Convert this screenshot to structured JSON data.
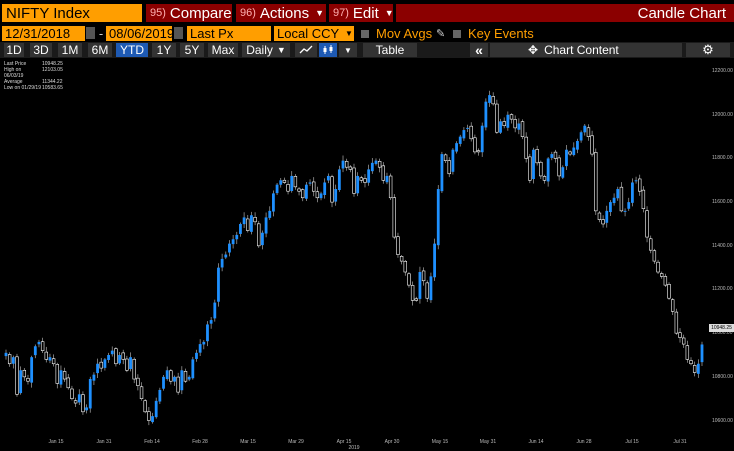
{
  "header": {
    "ticker": "NIFTY Index",
    "menus": [
      {
        "num": "95)",
        "label": "Compare",
        "has_arrow": false
      },
      {
        "num": "96)",
        "label": "Actions",
        "has_arrow": true
      },
      {
        "num": "97)",
        "label": "Edit",
        "has_arrow": true
      }
    ],
    "chart_title": "Candle Chart"
  },
  "controls": {
    "start_date": "12/31/2018",
    "dash": "-",
    "end_date": "08/06/2019",
    "price_field": "Last Px",
    "currency": "Local CCY",
    "mov_avgs": "Mov Avgs",
    "key_events": "Key Events"
  },
  "toolbar": {
    "ranges": [
      "1D",
      "3D",
      "1M",
      "6M",
      "YTD",
      "1Y",
      "5Y",
      "Max"
    ],
    "selected_range": "YTD",
    "frequency": "Daily",
    "table_label": "Table",
    "chart_content_label": "Chart Content"
  },
  "legend": [
    {
      "label": "Last Price",
      "value": "10948.25"
    },
    {
      "label": "High on 06/03/19",
      "value": "12103.05"
    },
    {
      "label": "Average",
      "value": "11344.22"
    },
    {
      "label": "Low on 01/29/19",
      "value": "10583.65"
    }
  ],
  "last_price_label": "10948.25",
  "colors": {
    "accent": "#ff9e00",
    "menu_bg": "#8b0000",
    "up_candle": "#1e90ff",
    "down_candle": "#ffffff",
    "selected_btn": "#1e5ab4"
  },
  "chart_data": {
    "type": "candlestick",
    "ylim": [
      10520,
      12260
    ],
    "y_ticks": [
      10600,
      10800,
      11000,
      11200,
      11400,
      11600,
      11800,
      12000,
      12200
    ],
    "x_tick_labels": [
      "Jan 15",
      "Jan 31",
      "Feb 14",
      "Feb 28",
      "Mar 15",
      "Mar 29",
      "Apr 15",
      "Apr 30",
      "May 15",
      "May 31",
      "Jun 14",
      "Jun 28",
      "Jul 15",
      "Jul 31"
    ],
    "year_label": "2019",
    "closes": [
      10910,
      10860,
      10890,
      10720,
      10830,
      10800,
      10780,
      10890,
      10940,
      10960,
      10920,
      10880,
      10890,
      10860,
      10770,
      10830,
      10790,
      10750,
      10700,
      10680,
      10720,
      10640,
      10660,
      10790,
      10810,
      10860,
      10840,
      10880,
      10900,
      10920,
      10860,
      10900,
      10880,
      10830,
      10890,
      10790,
      10760,
      10700,
      10640,
      10600,
      10620,
      10690,
      10740,
      10800,
      10830,
      10780,
      10800,
      10730,
      10830,
      10780,
      10800,
      10880,
      10910,
      10950,
      10960,
      11040,
      11060,
      11140,
      11300,
      11340,
      11360,
      11410,
      11430,
      11450,
      11500,
      11530,
      11470,
      11540,
      11510,
      11400,
      11460,
      11530,
      11560,
      11640,
      11680,
      11700,
      11690,
      11650,
      11720,
      11670,
      11650,
      11620,
      11680,
      11690,
      11650,
      11620,
      11640,
      11690,
      11720,
      11600,
      11660,
      11750,
      11790,
      11760,
      11750,
      11640,
      11720,
      11700,
      11690,
      11750,
      11780,
      11790,
      11760,
      11700,
      11720,
      11620,
      11440,
      11360,
      11330,
      11280,
      11220,
      11150,
      11150,
      11280,
      11240,
      11160,
      11260,
      11410,
      11660,
      11820,
      11790,
      11730,
      11840,
      11870,
      11900,
      11930,
      11940,
      11890,
      11830,
      11830,
      11950,
      12060,
      12090,
      12050,
      11920,
      11970,
      11950,
      12000,
      11980,
      11940,
      11960,
      11900,
      11800,
      11700,
      11840,
      11780,
      11720,
      11700,
      11800,
      11820,
      11800,
      11720,
      11760,
      11840,
      11820,
      11850,
      11880,
      11920,
      11950,
      11900,
      11820,
      11560,
      11520,
      11500,
      11560,
      11600,
      11620,
      11660,
      11560,
      11560,
      11600,
      11690,
      11700,
      11650,
      11570,
      11440,
      11380,
      11330,
      11280,
      11260,
      11220,
      11160,
      11100,
      11000,
      10980,
      10950,
      10880,
      10860,
      10820,
      10860,
      10948.25
    ]
  }
}
